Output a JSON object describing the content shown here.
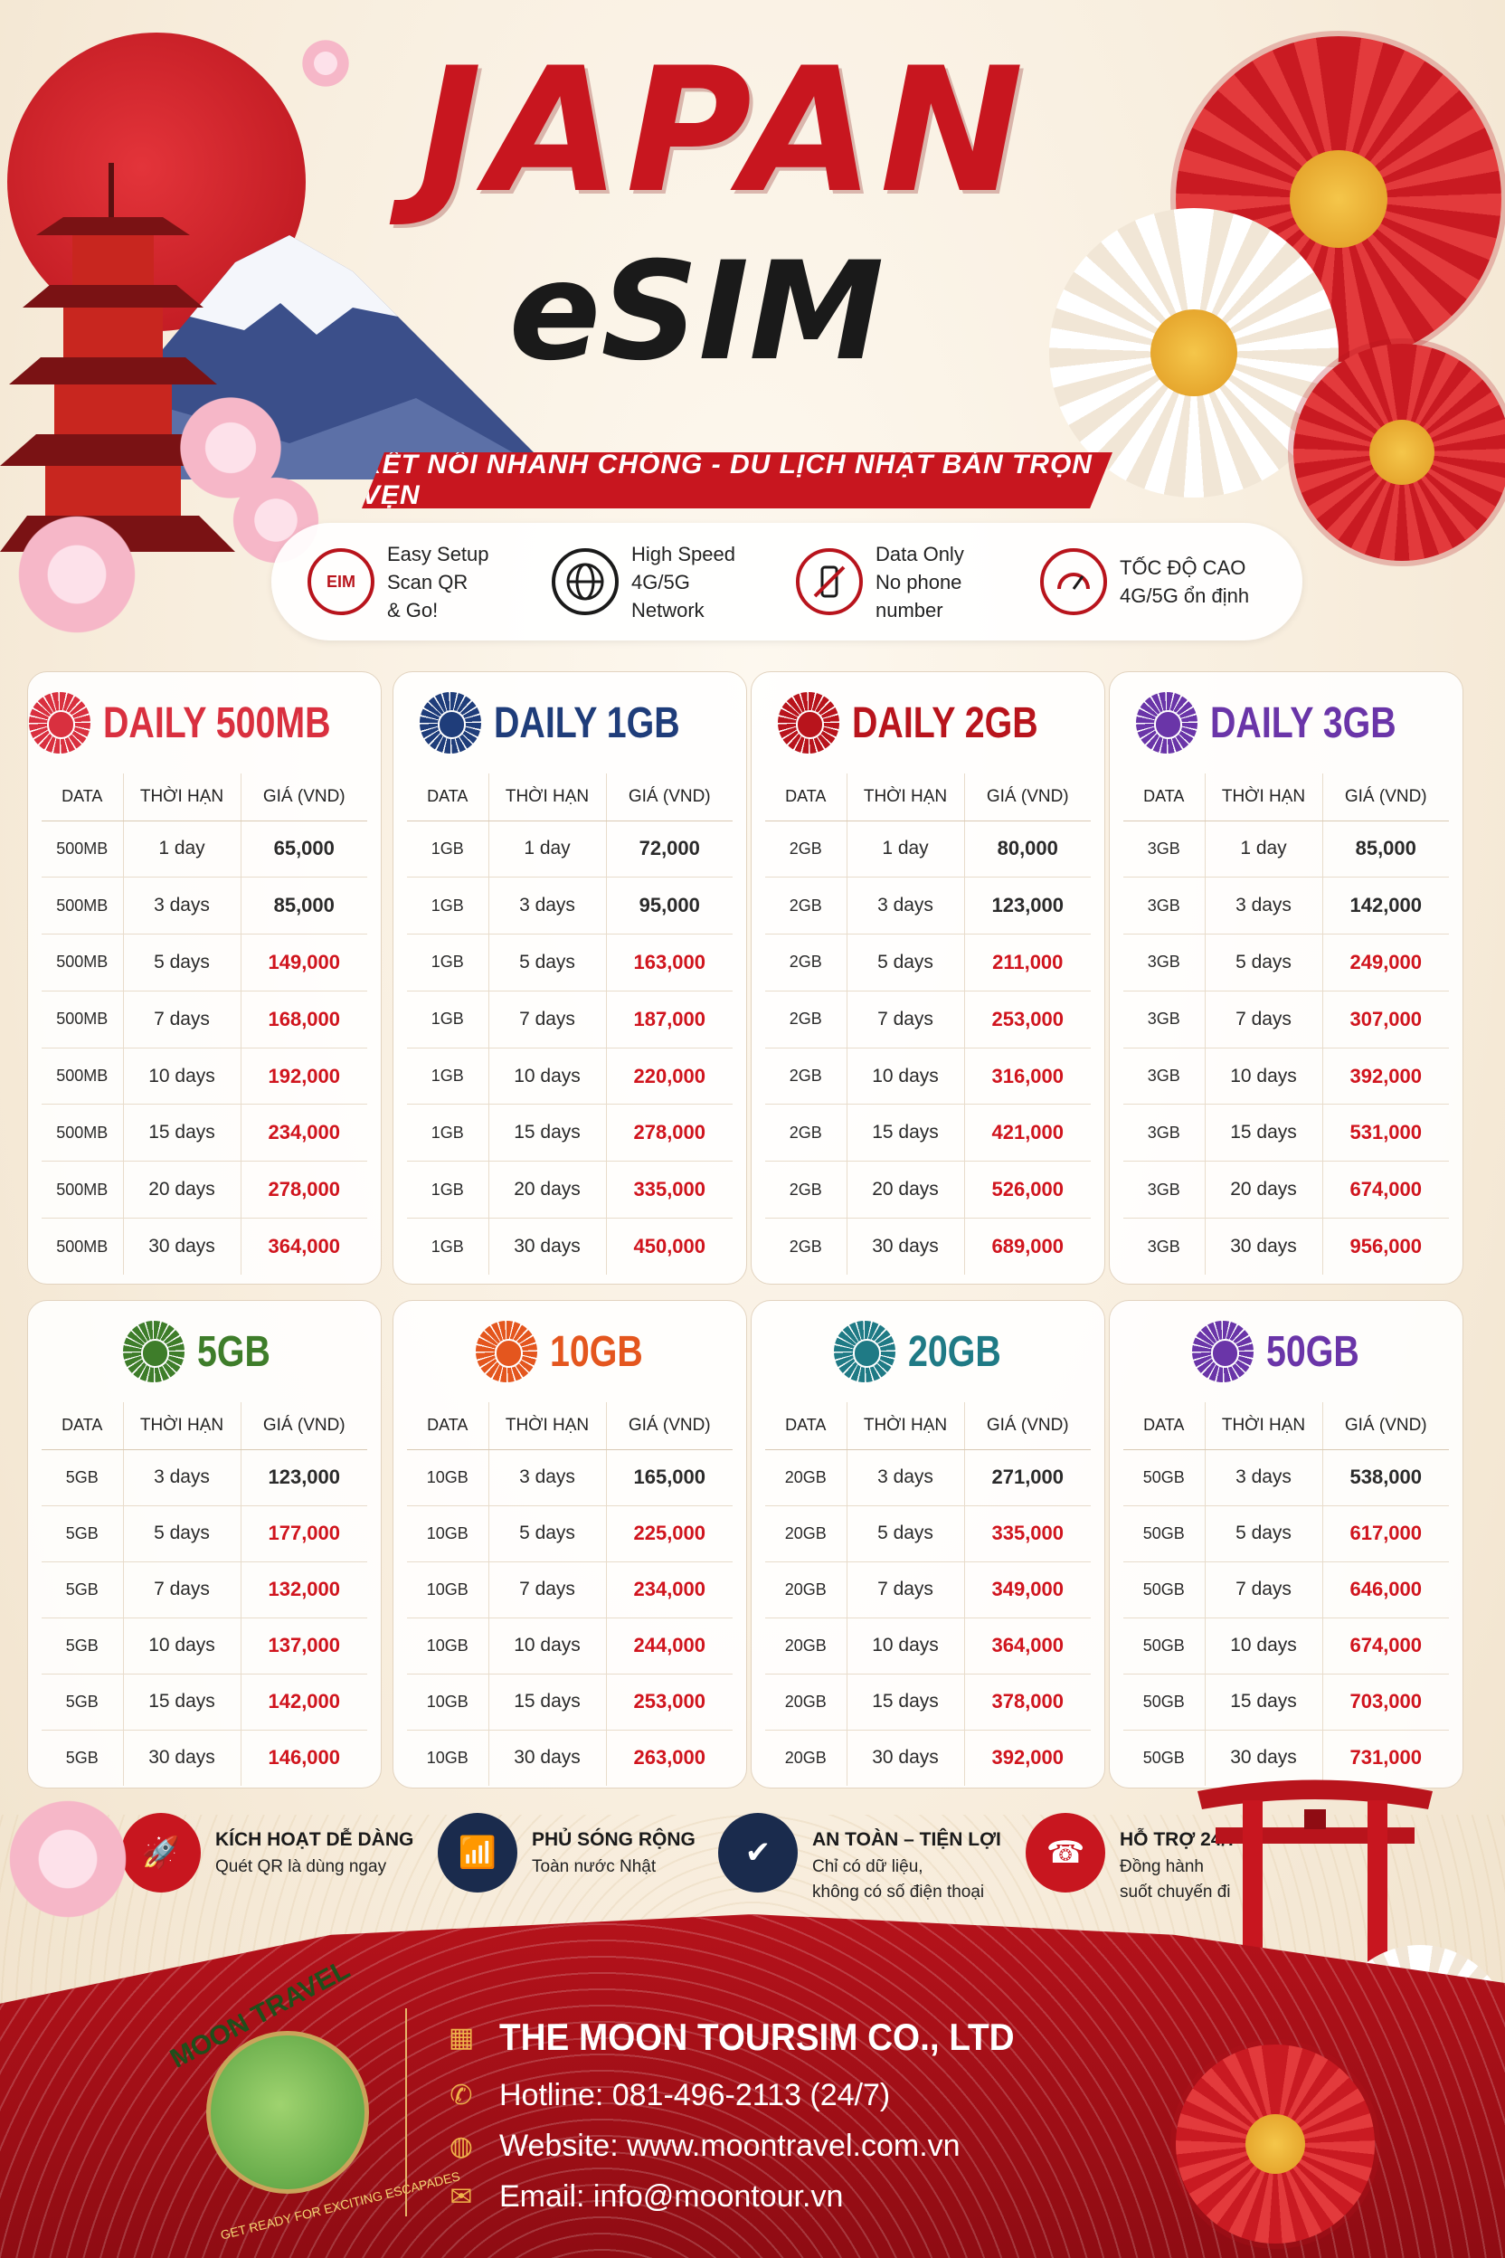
{
  "header": {
    "title": "JAPAN",
    "subtitle": "eSIM",
    "tagline": "KẾT NỐI NHANH CHÓNG - DU LỊCH NHẬT BẢN TRỌN VẸN"
  },
  "features": [
    {
      "icon": "esim-chip-icon",
      "badge": "EIM",
      "lines": [
        "Easy Setup",
        "Scan QR",
        "& Go!"
      ]
    },
    {
      "icon": "globe-icon",
      "lines": [
        "High Speed",
        "4G/5G",
        "Network"
      ]
    },
    {
      "icon": "no-phone-icon",
      "lines": [
        "Data Only",
        "No phone",
        "number"
      ]
    },
    {
      "icon": "speedometer-icon",
      "lines": [
        "TỐC ĐỘ CAO",
        "4G/5G ổn định"
      ]
    }
  ],
  "table_headers": [
    "DATA",
    "THỜI HẠN",
    "GIÁ (VND)"
  ],
  "plans": [
    {
      "title": "DAILY 500MB",
      "color": "#d9303f",
      "rows": [
        [
          "500MB",
          "1 day",
          "65,000"
        ],
        [
          "500MB",
          "3 days",
          "85,000"
        ],
        [
          "500MB",
          "5 days",
          "149,000"
        ],
        [
          "500MB",
          "7 days",
          "168,000"
        ],
        [
          "500MB",
          "10 days",
          "192,000"
        ],
        [
          "500MB",
          "15 days",
          "234,000"
        ],
        [
          "500MB",
          "20 days",
          "278,000"
        ],
        [
          "500MB",
          "30 days",
          "364,000"
        ]
      ]
    },
    {
      "title": "DAILY 1GB",
      "color": "#1f3d7a",
      "rows": [
        [
          "1GB",
          "1 day",
          "72,000"
        ],
        [
          "1GB",
          "3 days",
          "95,000"
        ],
        [
          "1GB",
          "5 days",
          "163,000"
        ],
        [
          "1GB",
          "7 days",
          "187,000"
        ],
        [
          "1GB",
          "10 days",
          "220,000"
        ],
        [
          "1GB",
          "15 days",
          "278,000"
        ],
        [
          "1GB",
          "20 days",
          "335,000"
        ],
        [
          "1GB",
          "30 days",
          "450,000"
        ]
      ]
    },
    {
      "title": "DAILY 2GB",
      "color": "#b8141c",
      "rows": [
        [
          "2GB",
          "1 day",
          "80,000"
        ],
        [
          "2GB",
          "3 days",
          "123,000"
        ],
        [
          "2GB",
          "5 days",
          "211,000"
        ],
        [
          "2GB",
          "7 days",
          "253,000"
        ],
        [
          "2GB",
          "10 days",
          "316,000"
        ],
        [
          "2GB",
          "15 days",
          "421,000"
        ],
        [
          "2GB",
          "20 days",
          "526,000"
        ],
        [
          "2GB",
          "30 days",
          "689,000"
        ]
      ]
    },
    {
      "title": "DAILY 3GB",
      "color": "#6a35a8",
      "rows": [
        [
          "3GB",
          "1 day",
          "85,000"
        ],
        [
          "3GB",
          "3 days",
          "142,000"
        ],
        [
          "3GB",
          "5 days",
          "249,000"
        ],
        [
          "3GB",
          "7 days",
          "307,000"
        ],
        [
          "3GB",
          "10 days",
          "392,000"
        ],
        [
          "3GB",
          "15 days",
          "531,000"
        ],
        [
          "3GB",
          "20 days",
          "674,000"
        ],
        [
          "3GB",
          "30 days",
          "956,000"
        ]
      ]
    },
    {
      "title": "5GB",
      "color": "#3e7d2a",
      "rows": [
        [
          "5GB",
          "3 days",
          "123,000"
        ],
        [
          "5GB",
          "5 days",
          "177,000"
        ],
        [
          "5GB",
          "7 days",
          "132,000"
        ],
        [
          "5GB",
          "10 days",
          "137,000"
        ],
        [
          "5GB",
          "15 days",
          "142,000"
        ],
        [
          "5GB",
          "30 days",
          "146,000"
        ]
      ]
    },
    {
      "title": "10GB",
      "color": "#e4561e",
      "rows": [
        [
          "10GB",
          "3 days",
          "165,000"
        ],
        [
          "10GB",
          "5 days",
          "225,000"
        ],
        [
          "10GB",
          "7 days",
          "234,000"
        ],
        [
          "10GB",
          "10 days",
          "244,000"
        ],
        [
          "10GB",
          "15 days",
          "253,000"
        ],
        [
          "10GB",
          "30 days",
          "263,000"
        ]
      ]
    },
    {
      "title": "20GB",
      "color": "#1f7a85",
      "rows": [
        [
          "20GB",
          "3 days",
          "271,000"
        ],
        [
          "20GB",
          "5 days",
          "335,000"
        ],
        [
          "20GB",
          "7 days",
          "349,000"
        ],
        [
          "20GB",
          "10 days",
          "364,000"
        ],
        [
          "20GB",
          "15 days",
          "378,000"
        ],
        [
          "20GB",
          "30 days",
          "392,000"
        ]
      ]
    },
    {
      "title": "50GB",
      "color": "#6a35a8",
      "rows": [
        [
          "50GB",
          "3 days",
          "538,000"
        ],
        [
          "50GB",
          "5 days",
          "617,000"
        ],
        [
          "50GB",
          "7 days",
          "646,000"
        ],
        [
          "50GB",
          "10 days",
          "674,000"
        ],
        [
          "50GB",
          "15 days",
          "703,000"
        ],
        [
          "50GB",
          "30 days",
          "731,000"
        ]
      ]
    }
  ],
  "benefits": [
    {
      "icon": "rocket-icon",
      "color": "#c8161f",
      "glyph": "🚀",
      "title": "KÍCH HOẠT DỄ DÀNG",
      "lines": [
        "Quét QR là dùng ngay"
      ]
    },
    {
      "icon": "wifi-icon",
      "color": "#1a2b4d",
      "glyph": "📶",
      "title": "PHỦ SÓNG RỘNG",
      "lines": [
        "Toàn nước Nhật"
      ]
    },
    {
      "icon": "shield-check-icon",
      "color": "#1a2b4d",
      "glyph": "✔",
      "title": "AN TOÀN – TIỆN LỢI",
      "lines": [
        "Chỉ có dữ liệu,",
        "không có số điện thoại"
      ]
    },
    {
      "icon": "headset-icon",
      "color": "#c8161f",
      "glyph": "☎",
      "title": "HỖ TRỢ 24/7",
      "lines": [
        "Đồng hành",
        "suốt chuyến đi"
      ]
    }
  ],
  "footer": {
    "logo_text": "MOON TRAVEL",
    "logo_tagline": "GET READY FOR EXCITING ESCAPADES",
    "company": "THE MOON TOURSIM CO., LTD",
    "hotline": "Hotline: 081-496-2113 (24/7)",
    "website": "Website: www.moontravel.com.vn",
    "email": "Email: info@moontour.vn"
  },
  "colors": {
    "brand_red": "#c8161f",
    "highlight_price": "#d0141d"
  }
}
